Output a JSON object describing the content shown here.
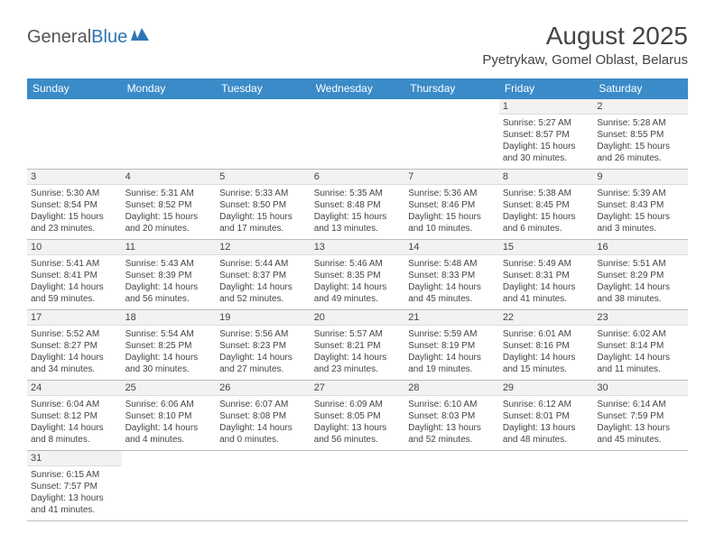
{
  "logo": {
    "part1": "General",
    "part2": "Blue"
  },
  "title": "August 2025",
  "location": "Pyetrykaw, Gomel Oblast, Belarus",
  "colors": {
    "header_bg": "#3b8bc9",
    "header_text": "#ffffff",
    "daynum_bg": "#f2f2f2",
    "border_row": "#3b8bc9",
    "text": "#444444",
    "logo_gray": "#555555",
    "logo_blue": "#2e75b6"
  },
  "day_headers": [
    "Sunday",
    "Monday",
    "Tuesday",
    "Wednesday",
    "Thursday",
    "Friday",
    "Saturday"
  ],
  "weeks": [
    [
      {
        "n": "",
        "sunrise": "",
        "sunset": "",
        "daylight": ""
      },
      {
        "n": "",
        "sunrise": "",
        "sunset": "",
        "daylight": ""
      },
      {
        "n": "",
        "sunrise": "",
        "sunset": "",
        "daylight": ""
      },
      {
        "n": "",
        "sunrise": "",
        "sunset": "",
        "daylight": ""
      },
      {
        "n": "",
        "sunrise": "",
        "sunset": "",
        "daylight": ""
      },
      {
        "n": "1",
        "sunrise": "Sunrise: 5:27 AM",
        "sunset": "Sunset: 8:57 PM",
        "daylight": "Daylight: 15 hours and 30 minutes."
      },
      {
        "n": "2",
        "sunrise": "Sunrise: 5:28 AM",
        "sunset": "Sunset: 8:55 PM",
        "daylight": "Daylight: 15 hours and 26 minutes."
      }
    ],
    [
      {
        "n": "3",
        "sunrise": "Sunrise: 5:30 AM",
        "sunset": "Sunset: 8:54 PM",
        "daylight": "Daylight: 15 hours and 23 minutes."
      },
      {
        "n": "4",
        "sunrise": "Sunrise: 5:31 AM",
        "sunset": "Sunset: 8:52 PM",
        "daylight": "Daylight: 15 hours and 20 minutes."
      },
      {
        "n": "5",
        "sunrise": "Sunrise: 5:33 AM",
        "sunset": "Sunset: 8:50 PM",
        "daylight": "Daylight: 15 hours and 17 minutes."
      },
      {
        "n": "6",
        "sunrise": "Sunrise: 5:35 AM",
        "sunset": "Sunset: 8:48 PM",
        "daylight": "Daylight: 15 hours and 13 minutes."
      },
      {
        "n": "7",
        "sunrise": "Sunrise: 5:36 AM",
        "sunset": "Sunset: 8:46 PM",
        "daylight": "Daylight: 15 hours and 10 minutes."
      },
      {
        "n": "8",
        "sunrise": "Sunrise: 5:38 AM",
        "sunset": "Sunset: 8:45 PM",
        "daylight": "Daylight: 15 hours and 6 minutes."
      },
      {
        "n": "9",
        "sunrise": "Sunrise: 5:39 AM",
        "sunset": "Sunset: 8:43 PM",
        "daylight": "Daylight: 15 hours and 3 minutes."
      }
    ],
    [
      {
        "n": "10",
        "sunrise": "Sunrise: 5:41 AM",
        "sunset": "Sunset: 8:41 PM",
        "daylight": "Daylight: 14 hours and 59 minutes."
      },
      {
        "n": "11",
        "sunrise": "Sunrise: 5:43 AM",
        "sunset": "Sunset: 8:39 PM",
        "daylight": "Daylight: 14 hours and 56 minutes."
      },
      {
        "n": "12",
        "sunrise": "Sunrise: 5:44 AM",
        "sunset": "Sunset: 8:37 PM",
        "daylight": "Daylight: 14 hours and 52 minutes."
      },
      {
        "n": "13",
        "sunrise": "Sunrise: 5:46 AM",
        "sunset": "Sunset: 8:35 PM",
        "daylight": "Daylight: 14 hours and 49 minutes."
      },
      {
        "n": "14",
        "sunrise": "Sunrise: 5:48 AM",
        "sunset": "Sunset: 8:33 PM",
        "daylight": "Daylight: 14 hours and 45 minutes."
      },
      {
        "n": "15",
        "sunrise": "Sunrise: 5:49 AM",
        "sunset": "Sunset: 8:31 PM",
        "daylight": "Daylight: 14 hours and 41 minutes."
      },
      {
        "n": "16",
        "sunrise": "Sunrise: 5:51 AM",
        "sunset": "Sunset: 8:29 PM",
        "daylight": "Daylight: 14 hours and 38 minutes."
      }
    ],
    [
      {
        "n": "17",
        "sunrise": "Sunrise: 5:52 AM",
        "sunset": "Sunset: 8:27 PM",
        "daylight": "Daylight: 14 hours and 34 minutes."
      },
      {
        "n": "18",
        "sunrise": "Sunrise: 5:54 AM",
        "sunset": "Sunset: 8:25 PM",
        "daylight": "Daylight: 14 hours and 30 minutes."
      },
      {
        "n": "19",
        "sunrise": "Sunrise: 5:56 AM",
        "sunset": "Sunset: 8:23 PM",
        "daylight": "Daylight: 14 hours and 27 minutes."
      },
      {
        "n": "20",
        "sunrise": "Sunrise: 5:57 AM",
        "sunset": "Sunset: 8:21 PM",
        "daylight": "Daylight: 14 hours and 23 minutes."
      },
      {
        "n": "21",
        "sunrise": "Sunrise: 5:59 AM",
        "sunset": "Sunset: 8:19 PM",
        "daylight": "Daylight: 14 hours and 19 minutes."
      },
      {
        "n": "22",
        "sunrise": "Sunrise: 6:01 AM",
        "sunset": "Sunset: 8:16 PM",
        "daylight": "Daylight: 14 hours and 15 minutes."
      },
      {
        "n": "23",
        "sunrise": "Sunrise: 6:02 AM",
        "sunset": "Sunset: 8:14 PM",
        "daylight": "Daylight: 14 hours and 11 minutes."
      }
    ],
    [
      {
        "n": "24",
        "sunrise": "Sunrise: 6:04 AM",
        "sunset": "Sunset: 8:12 PM",
        "daylight": "Daylight: 14 hours and 8 minutes."
      },
      {
        "n": "25",
        "sunrise": "Sunrise: 6:06 AM",
        "sunset": "Sunset: 8:10 PM",
        "daylight": "Daylight: 14 hours and 4 minutes."
      },
      {
        "n": "26",
        "sunrise": "Sunrise: 6:07 AM",
        "sunset": "Sunset: 8:08 PM",
        "daylight": "Daylight: 14 hours and 0 minutes."
      },
      {
        "n": "27",
        "sunrise": "Sunrise: 6:09 AM",
        "sunset": "Sunset: 8:05 PM",
        "daylight": "Daylight: 13 hours and 56 minutes."
      },
      {
        "n": "28",
        "sunrise": "Sunrise: 6:10 AM",
        "sunset": "Sunset: 8:03 PM",
        "daylight": "Daylight: 13 hours and 52 minutes."
      },
      {
        "n": "29",
        "sunrise": "Sunrise: 6:12 AM",
        "sunset": "Sunset: 8:01 PM",
        "daylight": "Daylight: 13 hours and 48 minutes."
      },
      {
        "n": "30",
        "sunrise": "Sunrise: 6:14 AM",
        "sunset": "Sunset: 7:59 PM",
        "daylight": "Daylight: 13 hours and 45 minutes."
      }
    ],
    [
      {
        "n": "31",
        "sunrise": "Sunrise: 6:15 AM",
        "sunset": "Sunset: 7:57 PM",
        "daylight": "Daylight: 13 hours and 41 minutes."
      },
      {
        "n": "",
        "sunrise": "",
        "sunset": "",
        "daylight": ""
      },
      {
        "n": "",
        "sunrise": "",
        "sunset": "",
        "daylight": ""
      },
      {
        "n": "",
        "sunrise": "",
        "sunset": "",
        "daylight": ""
      },
      {
        "n": "",
        "sunrise": "",
        "sunset": "",
        "daylight": ""
      },
      {
        "n": "",
        "sunrise": "",
        "sunset": "",
        "daylight": ""
      },
      {
        "n": "",
        "sunrise": "",
        "sunset": "",
        "daylight": ""
      }
    ]
  ]
}
